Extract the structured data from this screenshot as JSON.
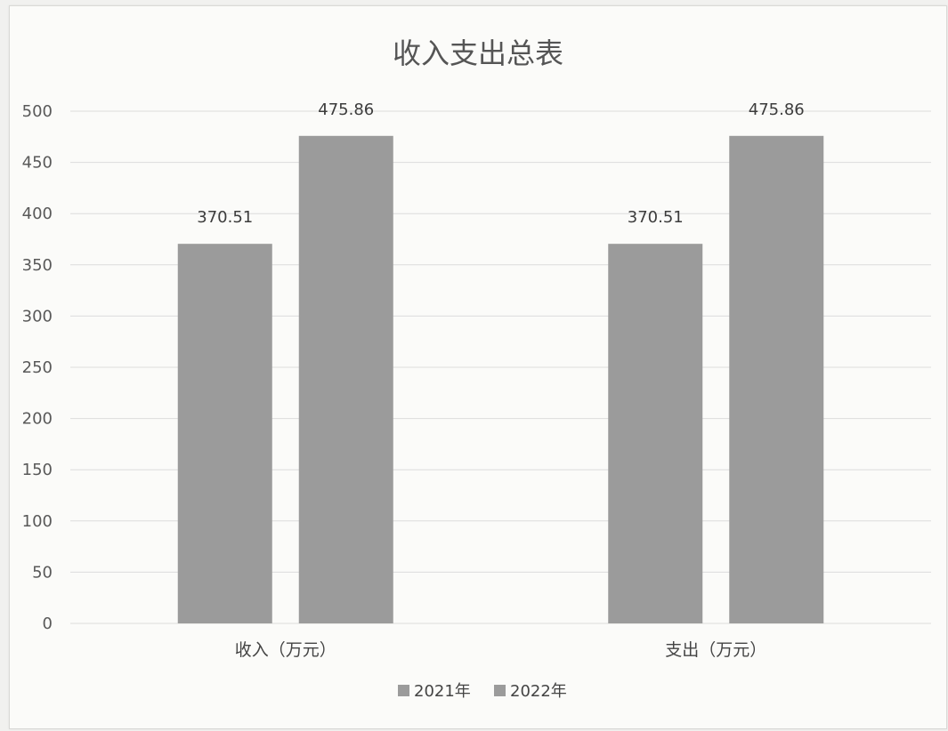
{
  "chart_data": {
    "type": "bar",
    "title": "收入支出总表",
    "categories": [
      "收入（万元）",
      "支出（万元）"
    ],
    "series": [
      {
        "name": "2021年",
        "values": [
          370.51,
          370.51
        ],
        "labels": [
          "370.51",
          "370.51"
        ]
      },
      {
        "name": "2022年",
        "values": [
          475.86,
          475.86
        ],
        "labels": [
          "475.86",
          "475.86"
        ]
      }
    ],
    "ylim": [
      0,
      500
    ],
    "yticks": [
      0,
      50,
      100,
      150,
      200,
      250,
      300,
      350,
      400,
      450,
      500
    ],
    "grid": true,
    "legend_position": "bottom",
    "colors": {
      "bar": "#9b9b9b",
      "grid": "#dcdcdc",
      "text": "#555555"
    }
  }
}
